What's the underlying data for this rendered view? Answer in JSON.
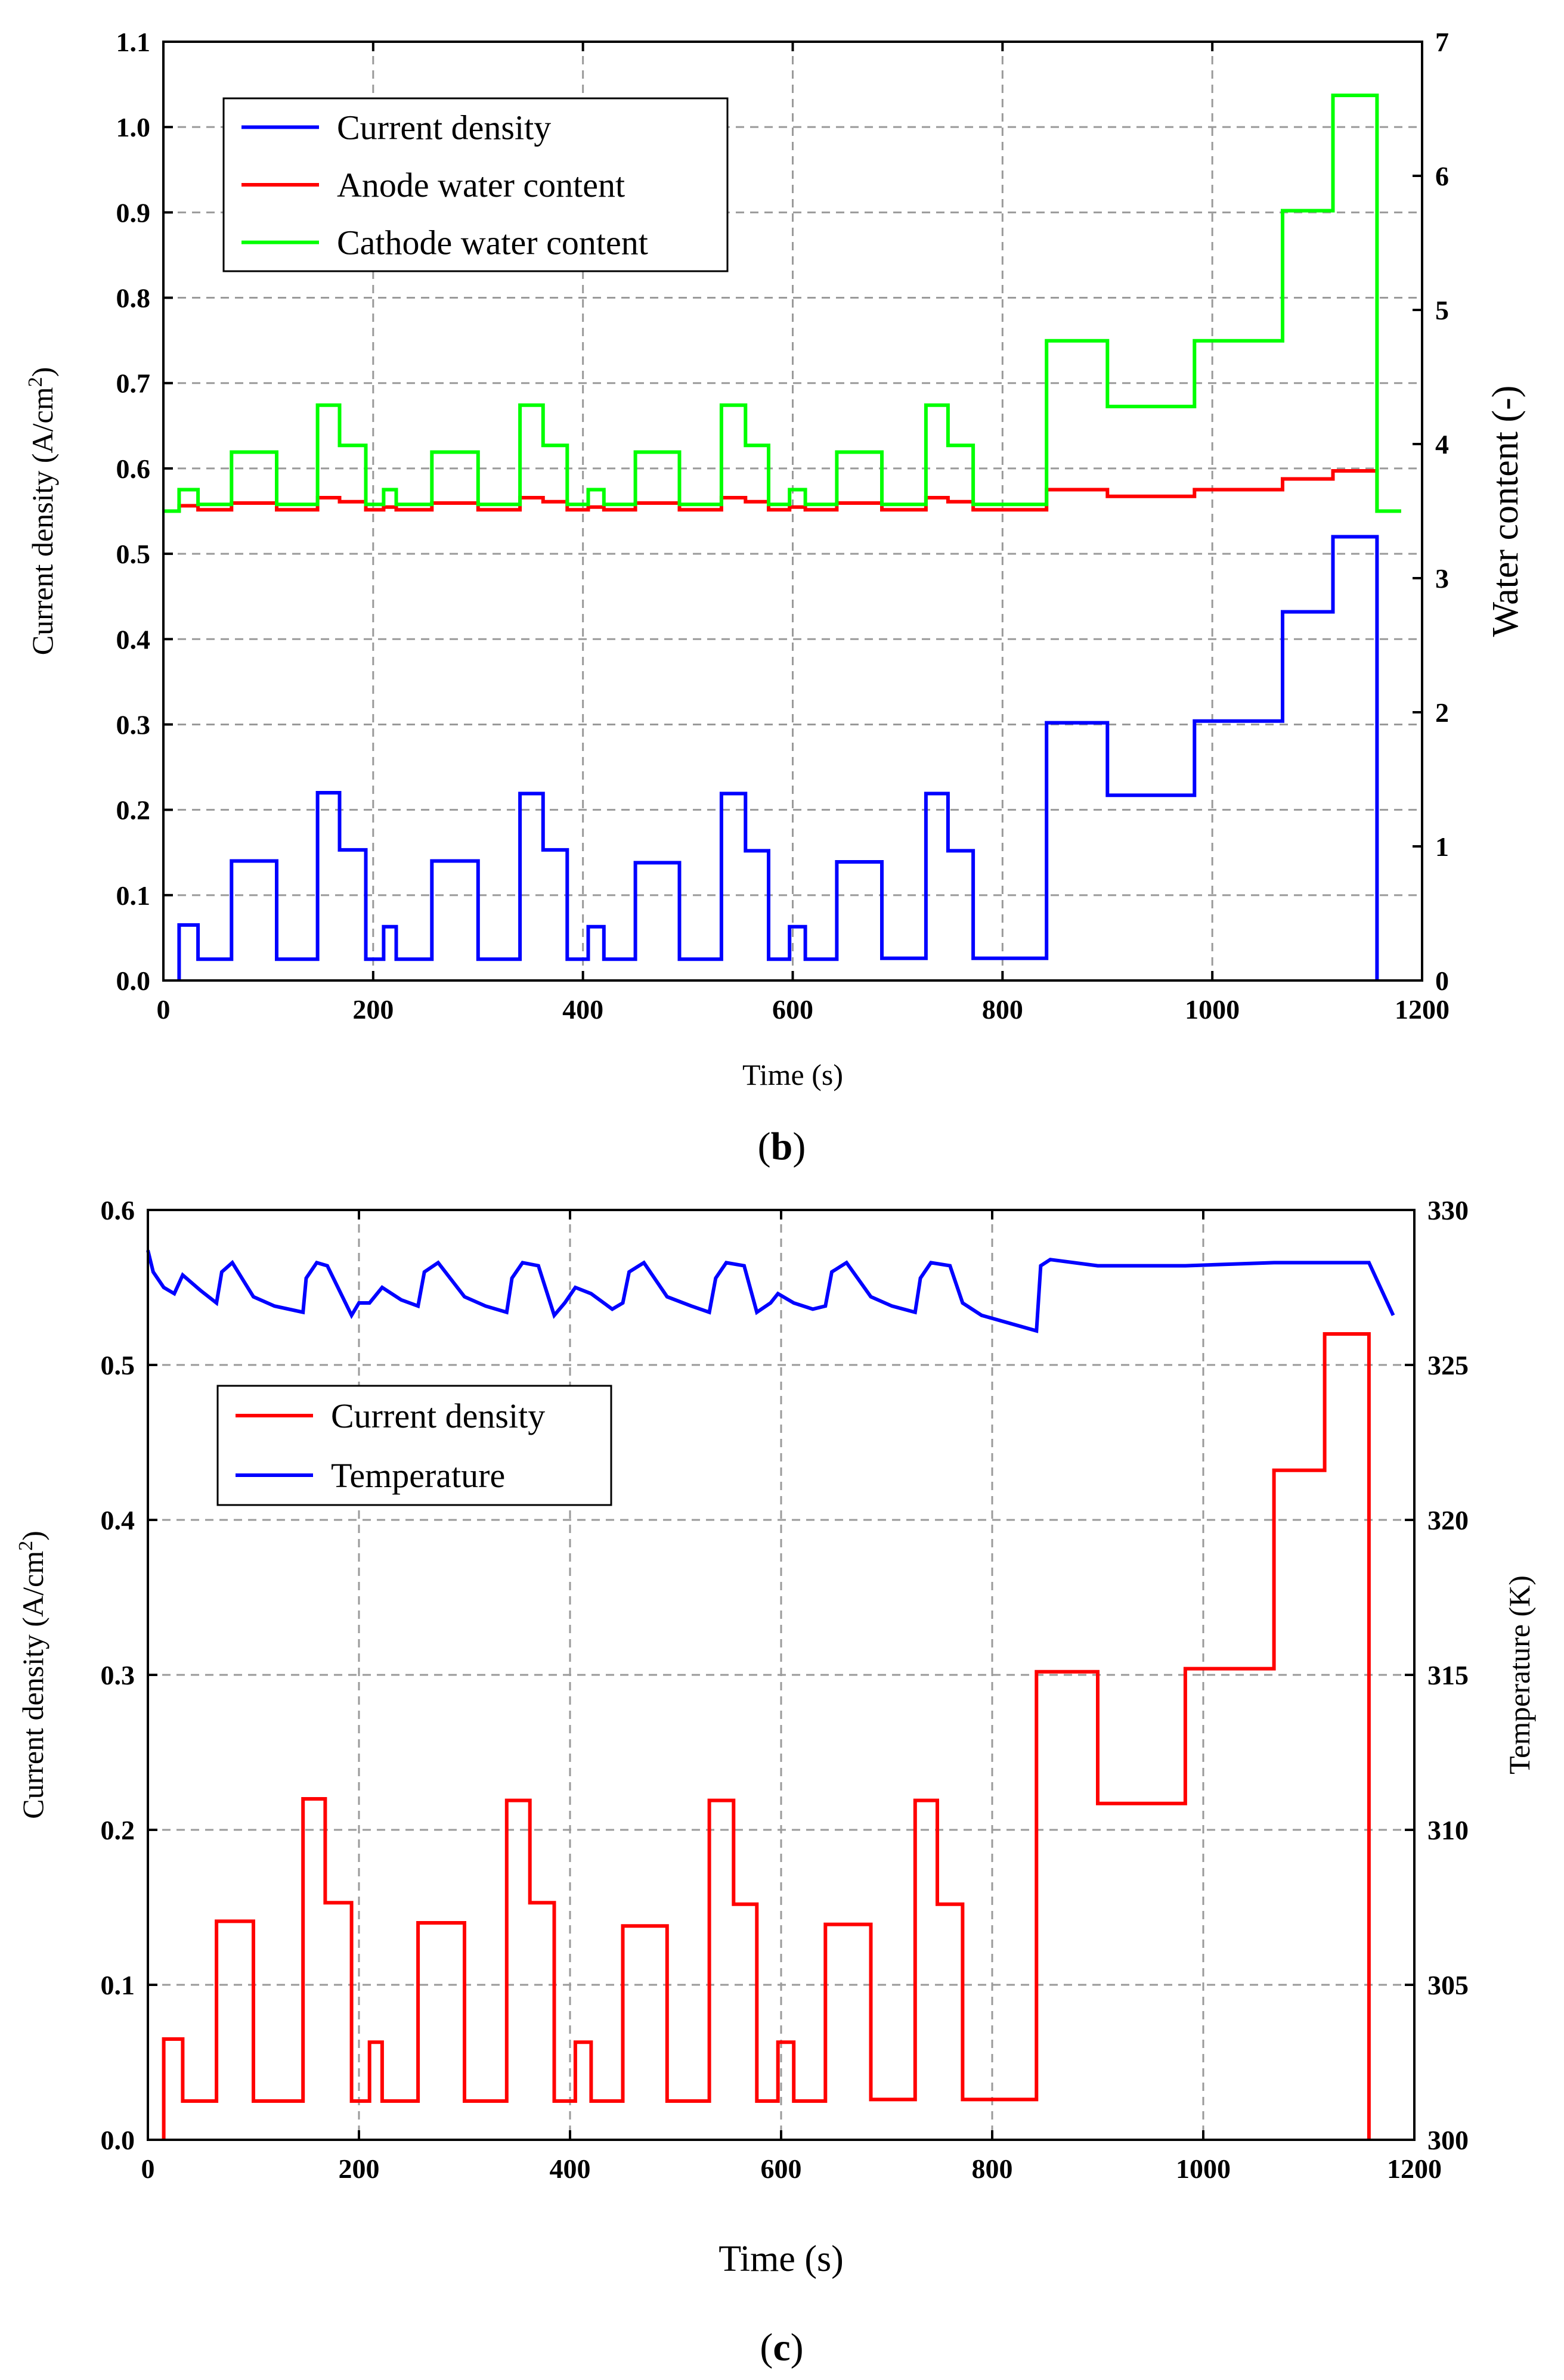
{
  "panels": [
    {
      "caption": "b",
      "chart_data": {
        "type": "line",
        "xlabel": "Time (s)",
        "ylabel": "Current density (A/cm²)",
        "y2label": "Water content (-)",
        "xlim": [
          0,
          1200
        ],
        "ylim": [
          0,
          1.1
        ],
        "y2lim": [
          0,
          7
        ],
        "grid": true,
        "legend_position": "top-left",
        "x_ticks": [
          "0",
          "200",
          "400",
          "600",
          "800",
          "1000",
          "1200"
        ],
        "y_ticks": [
          "0.0",
          "0.1",
          "0.2",
          "0.3",
          "0.4",
          "0.5",
          "0.6",
          "0.7",
          "0.8",
          "0.9",
          "1.0",
          "1.1"
        ],
        "y2_ticks": [
          "0",
          "1",
          "2",
          "3",
          "4",
          "5",
          "6",
          "7"
        ],
        "series": [
          {
            "name": "Current density",
            "color": "#0000ff",
            "axis": "left",
            "step": true,
            "x": [
              15,
              15,
              33,
              33,
              65,
              65,
              108,
              108,
              147,
              147,
              168,
              168,
              193,
              193,
              210,
              210,
              222,
              222,
              256,
              256,
              300,
              300,
              340,
              340,
              362,
              362,
              385,
              385,
              405,
              405,
              420,
              420,
              450,
              450,
              492,
              492,
              532,
              532,
              555,
              555,
              577,
              577,
              597,
              597,
              612,
              612,
              642,
              642,
              685,
              685,
              727,
              727,
              748,
              748,
              772,
              772,
              842,
              842,
              900,
              900,
              983,
              983,
              1067,
              1067,
              1115,
              1115,
              1157,
              1157
            ],
            "values": [
              0.0,
              0.065,
              0.065,
              0.025,
              0.025,
              0.14,
              0.14,
              0.025,
              0.025,
              0.22,
              0.22,
              0.153,
              0.153,
              0.025,
              0.025,
              0.063,
              0.063,
              0.025,
              0.025,
              0.14,
              0.14,
              0.025,
              0.025,
              0.219,
              0.219,
              0.153,
              0.153,
              0.025,
              0.025,
              0.063,
              0.063,
              0.025,
              0.025,
              0.138,
              0.138,
              0.025,
              0.025,
              0.219,
              0.219,
              0.152,
              0.152,
              0.025,
              0.025,
              0.063,
              0.063,
              0.025,
              0.025,
              0.139,
              0.139,
              0.026,
              0.026,
              0.219,
              0.219,
              0.152,
              0.152,
              0.026,
              0.026,
              0.302,
              0.302,
              0.217,
              0.217,
              0.304,
              0.304,
              0.432,
              0.432,
              0.52,
              0.52,
              0.0
            ]
          },
          {
            "name": "Anode water content",
            "color": "#ff0000",
            "axis": "right",
            "step": true,
            "x": [
              0,
              15,
              15,
              33,
              33,
              65,
              65,
              108,
              108,
              147,
              147,
              168,
              168,
              193,
              193,
              210,
              210,
              222,
              222,
              256,
              256,
              300,
              300,
              340,
              340,
              362,
              362,
              385,
              385,
              405,
              405,
              420,
              420,
              450,
              450,
              492,
              492,
              532,
              532,
              555,
              555,
              577,
              577,
              597,
              597,
              612,
              612,
              642,
              642,
              685,
              685,
              727,
              727,
              748,
              748,
              772,
              772,
              842,
              842,
              900,
              900,
              983,
              983,
              1067,
              1067,
              1115,
              1115,
              1157,
              1157,
              1180
            ],
            "values": [
              3.5,
              3.5,
              3.54,
              3.54,
              3.51,
              3.51,
              3.56,
              3.56,
              3.51,
              3.51,
              3.6,
              3.6,
              3.57,
              3.57,
              3.51,
              3.51,
              3.53,
              3.53,
              3.51,
              3.51,
              3.56,
              3.56,
              3.51,
              3.51,
              3.6,
              3.6,
              3.57,
              3.57,
              3.51,
              3.51,
              3.53,
              3.53,
              3.51,
              3.51,
              3.56,
              3.56,
              3.51,
              3.51,
              3.6,
              3.6,
              3.57,
              3.57,
              3.51,
              3.51,
              3.53,
              3.53,
              3.51,
              3.51,
              3.56,
              3.56,
              3.51,
              3.51,
              3.6,
              3.6,
              3.57,
              3.57,
              3.51,
              3.51,
              3.66,
              3.66,
              3.61,
              3.61,
              3.66,
              3.66,
              3.74,
              3.74,
              3.8,
              3.8,
              3.5,
              3.5
            ]
          },
          {
            "name": "Cathode water content",
            "color": "#00ff00",
            "axis": "right",
            "step": true,
            "x": [
              0,
              15,
              15,
              33,
              33,
              65,
              65,
              108,
              108,
              147,
              147,
              168,
              168,
              193,
              193,
              210,
              210,
              222,
              222,
              256,
              256,
              300,
              300,
              340,
              340,
              362,
              362,
              385,
              385,
              405,
              405,
              420,
              420,
              450,
              450,
              492,
              492,
              532,
              532,
              555,
              555,
              577,
              577,
              597,
              597,
              612,
              612,
              642,
              642,
              685,
              685,
              727,
              727,
              748,
              748,
              772,
              772,
              842,
              842,
              900,
              900,
              983,
              983,
              1067,
              1067,
              1115,
              1115,
              1157,
              1157,
              1180
            ],
            "values": [
              3.5,
              3.5,
              3.66,
              3.66,
              3.55,
              3.55,
              3.94,
              3.94,
              3.55,
              3.55,
              4.29,
              4.29,
              3.99,
              3.99,
              3.55,
              3.55,
              3.66,
              3.66,
              3.55,
              3.55,
              3.94,
              3.94,
              3.55,
              3.55,
              4.29,
              4.29,
              3.99,
              3.99,
              3.55,
              3.55,
              3.66,
              3.66,
              3.55,
              3.55,
              3.94,
              3.94,
              3.55,
              3.55,
              4.29,
              4.29,
              3.99,
              3.99,
              3.55,
              3.55,
              3.66,
              3.66,
              3.55,
              3.55,
              3.94,
              3.94,
              3.55,
              3.55,
              4.29,
              4.29,
              3.99,
              3.99,
              3.55,
              3.55,
              4.77,
              4.77,
              4.28,
              4.28,
              4.77,
              4.77,
              5.74,
              5.74,
              6.6,
              6.6,
              3.5,
              3.5
            ]
          }
        ]
      }
    },
    {
      "caption": "c",
      "chart_data": {
        "type": "line",
        "xlabel": "Time (s)",
        "ylabel": "Current density (A/cm²)",
        "y2label": "Temperature (K)",
        "xlim": [
          0,
          1200
        ],
        "ylim": [
          0,
          0.6
        ],
        "y2lim": [
          300,
          330
        ],
        "grid": true,
        "legend_position": "top-left",
        "x_ticks": [
          "0",
          "200",
          "400",
          "600",
          "800",
          "1000",
          "1200"
        ],
        "y_ticks": [
          "0.0",
          "0.1",
          "0.2",
          "0.3",
          "0.4",
          "0.5",
          "0.6"
        ],
        "y2_ticks": [
          "300",
          "305",
          "310",
          "315",
          "320",
          "325",
          "330"
        ],
        "series": [
          {
            "name": "Current density",
            "color": "#ff0000",
            "axis": "left",
            "step": true,
            "x": [
              15,
              15,
              33,
              33,
              65,
              65,
              100,
              100,
              147,
              147,
              168,
              168,
              193,
              193,
              210,
              210,
              222,
              222,
              256,
              256,
              300,
              300,
              340,
              340,
              362,
              362,
              385,
              385,
              405,
              405,
              420,
              420,
              450,
              450,
              492,
              492,
              532,
              532,
              555,
              555,
              577,
              577,
              597,
              597,
              612,
              612,
              642,
              642,
              685,
              685,
              727,
              727,
              748,
              748,
              772,
              772,
              842,
              842,
              900,
              900,
              983,
              983,
              1067,
              1067,
              1115,
              1115,
              1157,
              1157
            ],
            "values": [
              0.0,
              0.065,
              0.065,
              0.025,
              0.025,
              0.141,
              0.141,
              0.025,
              0.025,
              0.22,
              0.22,
              0.153,
              0.153,
              0.025,
              0.025,
              0.063,
              0.063,
              0.025,
              0.025,
              0.14,
              0.14,
              0.025,
              0.025,
              0.219,
              0.219,
              0.153,
              0.153,
              0.025,
              0.025,
              0.063,
              0.063,
              0.025,
              0.025,
              0.138,
              0.138,
              0.025,
              0.025,
              0.219,
              0.219,
              0.152,
              0.152,
              0.025,
              0.025,
              0.063,
              0.063,
              0.025,
              0.025,
              0.139,
              0.139,
              0.026,
              0.026,
              0.219,
              0.219,
              0.152,
              0.152,
              0.026,
              0.026,
              0.302,
              0.302,
              0.217,
              0.217,
              0.304,
              0.304,
              0.432,
              0.432,
              0.52,
              0.52,
              0.0
            ]
          },
          {
            "name": "Temperature",
            "color": "#0000ff",
            "axis": "right",
            "step": false,
            "x": [
              0,
              5,
              15,
              25,
              33,
              50,
              65,
              70,
              80,
              100,
              120,
              147,
              150,
              160,
              170,
              193,
              200,
              210,
              222,
              240,
              256,
              262,
              275,
              300,
              320,
              340,
              345,
              355,
              370,
              385,
              395,
              405,
              420,
              440,
              450,
              456,
              470,
              492,
              515,
              532,
              538,
              548,
              565,
              577,
              590,
              597,
              612,
              630,
              642,
              648,
              662,
              685,
              705,
              727,
              732,
              742,
              760,
              772,
              790,
              842,
              846,
              855,
              900,
              983,
              1067,
              1115,
              1157,
              1180
            ],
            "values": [
              328.7,
              328.0,
              327.5,
              327.3,
              327.9,
              327.4,
              327.0,
              328.0,
              328.3,
              327.2,
              326.9,
              326.7,
              327.8,
              328.3,
              328.2,
              326.6,
              327.0,
              327.0,
              327.5,
              327.1,
              326.9,
              328.0,
              328.3,
              327.2,
              326.9,
              326.7,
              327.8,
              328.3,
              328.2,
              326.6,
              327.0,
              327.5,
              327.3,
              326.8,
              327.0,
              328.0,
              328.3,
              327.2,
              326.9,
              326.7,
              327.8,
              328.3,
              328.2,
              326.7,
              327.0,
              327.3,
              327.0,
              326.8,
              326.9,
              328.0,
              328.3,
              327.2,
              326.9,
              326.7,
              327.8,
              328.3,
              328.2,
              327.0,
              326.6,
              326.1,
              328.2,
              328.4,
              328.2,
              328.2,
              328.3,
              328.3,
              328.3,
              326.6
            ]
          }
        ]
      }
    }
  ]
}
